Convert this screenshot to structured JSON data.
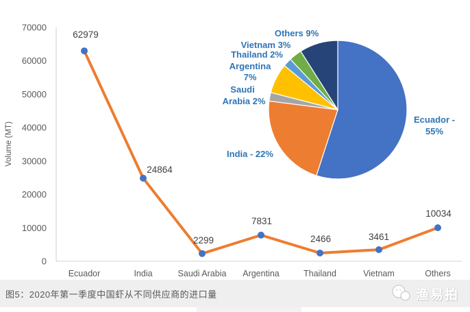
{
  "figure": {
    "caption": "图5：2020年第一季度中国虾从不同供应商的进口量",
    "watermark": "渔易拍"
  },
  "chart_data": [
    {
      "type": "line",
      "title": "",
      "xlabel": "",
      "ylabel": "Volume (MT)",
      "categories": [
        "Ecuador",
        "India",
        "Saudi Arabia",
        "Argentina",
        "Thailand",
        "Vietnam",
        "Others"
      ],
      "values": [
        62979,
        24864,
        2299,
        7831,
        2466,
        3461,
        10034
      ],
      "data_labels": [
        "62979",
        "24864",
        "2299",
        "7831",
        "2466",
        "3461",
        "10034"
      ],
      "ylim": [
        0,
        70000
      ],
      "ytick_step": 10000,
      "ytick_labels": [
        "0",
        "10000",
        "20000",
        "30000",
        "40000",
        "50000",
        "60000",
        "70000"
      ],
      "grid": false,
      "legend": "none",
      "line_color": "#ED7D31",
      "marker_color": "#4472C4"
    },
    {
      "type": "pie",
      "start_angle_deg": 0,
      "direction": "clockwise",
      "label_color": "#2E75B6",
      "slices": [
        {
          "name": "Ecuador",
          "percent": 55,
          "color": "#4472C4",
          "label_lines": [
            "Ecuador -",
            "55%"
          ]
        },
        {
          "name": "India",
          "percent": 22,
          "color": "#ED7D31",
          "label_lines": [
            "India - 22%"
          ]
        },
        {
          "name": "Saudi Arabia",
          "percent": 2,
          "color": "#A5A5A5",
          "label_lines": [
            "Saudi",
            "Arabia 2%"
          ]
        },
        {
          "name": "Argentina",
          "percent": 7,
          "color": "#FFC000",
          "label_lines": [
            "Argentina",
            "7%"
          ]
        },
        {
          "name": "Thailand",
          "percent": 2,
          "color": "#5B9BD5",
          "label_lines": [
            "Thailand 2%"
          ]
        },
        {
          "name": "Vietnam",
          "percent": 3,
          "color": "#70AD47",
          "label_lines": [
            "Vietnam 3%"
          ]
        },
        {
          "name": "Others",
          "percent": 9,
          "color": "#264478",
          "label_lines": [
            "Others 9%"
          ]
        }
      ]
    }
  ],
  "colors": {
    "axis_line": "#d9d9d9",
    "tick_text": "#595959",
    "data_label_text": "#404040",
    "caption_bar_bg": "#efefef",
    "caption_text": "#595959"
  }
}
